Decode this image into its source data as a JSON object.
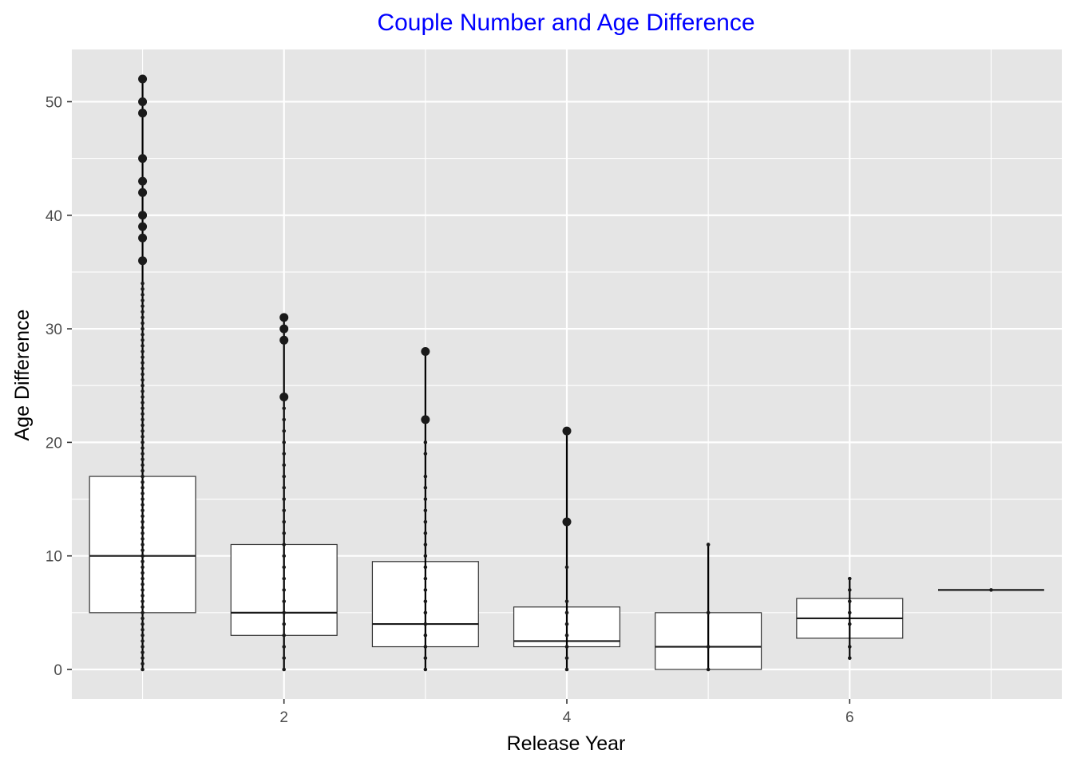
{
  "chart_data": {
    "type": "box",
    "title": "Couple Number and Age Difference",
    "xlabel": "Release Year",
    "ylabel": "Age Difference",
    "xlim": [
      0.5,
      7.5
    ],
    "ylim": [
      -2.6,
      54.6
    ],
    "x_ticks": [
      2,
      4,
      6
    ],
    "y_ticks": [
      0,
      10,
      20,
      30,
      40,
      50
    ],
    "grid": true,
    "legend": "none",
    "colors": {
      "title": "#0000ff",
      "panel": "#e5e5e5",
      "grid": "#ffffff",
      "box_fill": "#ffffff",
      "box_line": "#333333",
      "points": "#1a1a1a"
    },
    "boxes": [
      {
        "x": 1,
        "lower": 5,
        "q1": 5,
        "median": 10,
        "q3": 17,
        "upper": 34,
        "points": [
          0,
          0.5,
          1,
          1.5,
          2,
          2.5,
          3,
          3.5,
          4,
          4.5,
          5,
          5.5,
          6,
          6.5,
          7,
          7.5,
          8,
          8.5,
          9,
          9.5,
          10,
          10.5,
          11,
          11.5,
          12,
          12.5,
          13,
          13.5,
          14,
          14.5,
          15,
          15.5,
          16,
          16.5,
          17,
          17.5,
          18,
          18.5,
          19,
          19.5,
          20,
          20.5,
          21,
          21.5,
          22,
          22.5,
          23,
          23.5,
          24,
          24.5,
          25,
          25.5,
          26,
          26.5,
          27,
          27.5,
          28,
          28.5,
          29,
          29.5,
          30,
          30.5,
          31,
          31.5,
          32,
          32.5,
          33,
          33.5,
          34
        ],
        "outliers": [
          36,
          38,
          39,
          40,
          42,
          43,
          45,
          49,
          50,
          52
        ]
      },
      {
        "x": 2,
        "lower": 3,
        "q1": 3,
        "median": 5,
        "q3": 11,
        "upper": 23,
        "points": [
          0,
          1,
          2,
          3,
          4,
          5,
          6,
          7,
          8,
          9,
          10,
          11,
          12,
          13,
          14,
          15,
          16,
          17,
          18,
          19,
          20,
          21,
          22,
          23
        ],
        "outliers": [
          24,
          29,
          30,
          31
        ]
      },
      {
        "x": 3,
        "lower": 2,
        "q1": 2,
        "median": 4,
        "q3": 9.5,
        "upper": 20,
        "points": [
          0,
          1,
          2,
          3,
          4,
          5,
          6,
          7,
          8,
          9,
          10,
          11,
          12,
          13,
          14,
          15,
          16,
          17,
          19,
          20
        ],
        "outliers": [
          22,
          28
        ]
      },
      {
        "x": 4,
        "lower": 2,
        "q1": 2,
        "median": 2.5,
        "q3": 5.5,
        "upper": 9,
        "points": [
          0,
          1,
          2,
          3,
          4,
          5,
          6,
          9
        ],
        "outliers": [
          13,
          21
        ]
      },
      {
        "x": 5,
        "lower": 0,
        "q1": 0,
        "median": 2,
        "q3": 5,
        "upper": 11,
        "points": [
          0,
          2,
          5,
          11
        ],
        "outliers": []
      },
      {
        "x": 6,
        "lower": 1,
        "q1": 2.75,
        "median": 4.5,
        "q3": 6.25,
        "upper": 8,
        "points": [
          1,
          2,
          4,
          5,
          6,
          7,
          8
        ],
        "outliers": []
      },
      {
        "x": 7,
        "lower": 7,
        "q1": 7,
        "median": 7,
        "q3": 7,
        "upper": 7,
        "points": [
          7
        ],
        "outliers": []
      }
    ]
  }
}
